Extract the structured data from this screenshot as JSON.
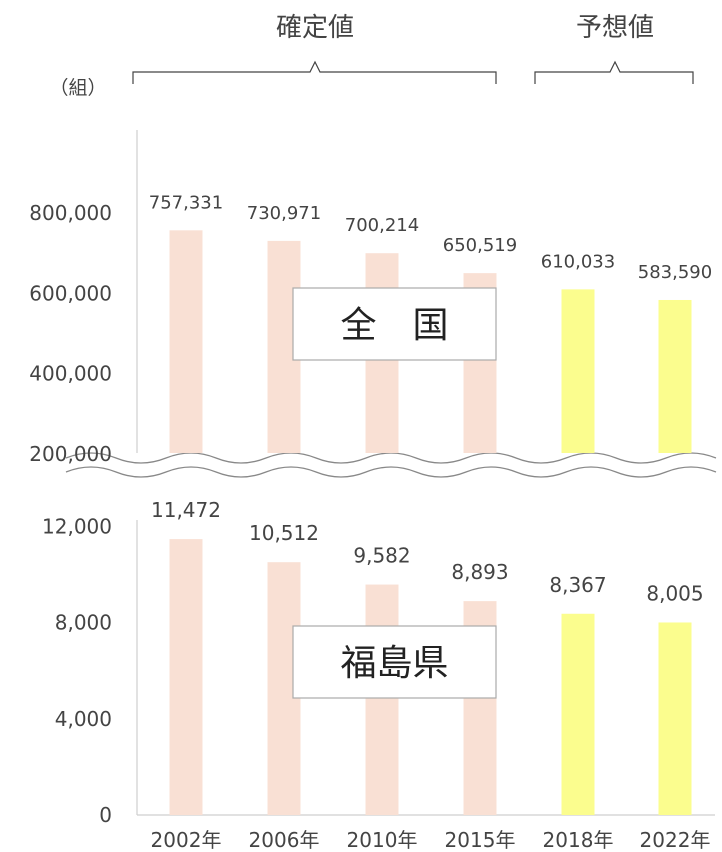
{
  "header": {
    "confirmed_label": "確定値",
    "forecast_label": "予想値",
    "unit": "（組）"
  },
  "colors": {
    "confirmed": "#f9e0d4",
    "forecast": "#fbfd8e",
    "axis": "#cfcfcf",
    "text": "#444444"
  },
  "chart_data": [
    {
      "type": "bar",
      "region_label": "全　国",
      "categories": [
        "2002年",
        "2006年",
        "2010年",
        "2015年",
        "2018年",
        "2022年"
      ],
      "values": [
        757331,
        730971,
        700214,
        650519,
        610033,
        583590
      ],
      "value_labels": [
        "757,331",
        "730,971",
        "700,214",
        "650,519",
        "610,033",
        "583,590"
      ],
      "series_kind": [
        "確定値",
        "確定値",
        "確定値",
        "確定値",
        "予想値",
        "予想値"
      ],
      "yticks": [
        200000,
        400000,
        600000,
        800000
      ],
      "ytick_labels": [
        "200,000",
        "400,000",
        "600,000",
        "800,000"
      ],
      "ylim": [
        0,
        800000
      ],
      "axis_break": "bottom"
    },
    {
      "type": "bar",
      "region_label": "福島県",
      "categories": [
        "2002年",
        "2006年",
        "2010年",
        "2015年",
        "2018年",
        "2022年"
      ],
      "values": [
        11472,
        10512,
        9582,
        8893,
        8367,
        8005
      ],
      "value_labels": [
        "11,472",
        "10,512",
        "9,582",
        "8,893",
        "8,367",
        "8,005"
      ],
      "series_kind": [
        "確定値",
        "確定値",
        "確定値",
        "確定値",
        "予想値",
        "予想値"
      ],
      "yticks": [
        0,
        4000,
        8000,
        12000
      ],
      "ytick_labels": [
        "0",
        "4,000",
        "8,000",
        "12,000"
      ],
      "ylim": [
        0,
        12000
      ]
    }
  ]
}
